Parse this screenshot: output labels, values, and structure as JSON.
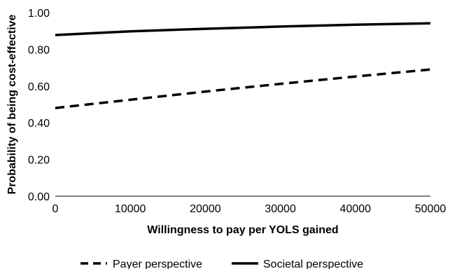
{
  "chart_data": {
    "type": "line",
    "title": "",
    "xlabel": "Willingness to pay per YOLS gained",
    "ylabel": "Probability of being cost-effective",
    "xlim": [
      0,
      50000
    ],
    "ylim": [
      0,
      1
    ],
    "xticks": [
      0,
      10000,
      20000,
      30000,
      40000,
      50000
    ],
    "xtick_labels": [
      "0",
      "10000",
      "20000",
      "30000",
      "40000",
      "50000"
    ],
    "yticks": [
      0,
      0.2,
      0.4,
      0.6,
      0.8,
      1.0
    ],
    "ytick_labels": [
      "0.00",
      "0.20",
      "0.40",
      "0.60",
      "0.80",
      "1.00"
    ],
    "grid": false,
    "legend_position": "bottom",
    "series": [
      {
        "name": "Payer perspective",
        "style": "dashed",
        "color": "#000000",
        "x": [
          0,
          10000,
          20000,
          30000,
          40000,
          50000
        ],
        "y": [
          0.48,
          0.525,
          0.57,
          0.612,
          0.652,
          0.69
        ]
      },
      {
        "name": "Societal perspective",
        "style": "solid",
        "color": "#000000",
        "x": [
          0,
          10000,
          20000,
          30000,
          40000,
          50000
        ],
        "y": [
          0.878,
          0.898,
          0.912,
          0.924,
          0.934,
          0.942
        ]
      }
    ]
  }
}
